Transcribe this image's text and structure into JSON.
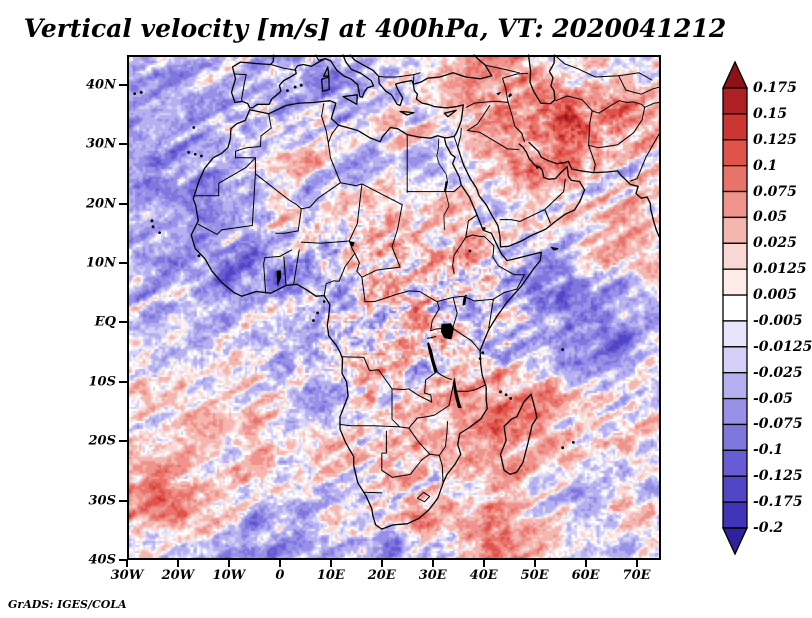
{
  "title": {
    "text": "Vertical velocity [m/s] at 400hPa, VT: 2020041212"
  },
  "credit": {
    "text": "GrADS: IGES/COLA"
  },
  "chart_data": {
    "type": "heatmap",
    "title": "Vertical velocity [m/s] at 400hPa, VT: 2020041212",
    "variable": "Vertical velocity",
    "units": "m/s",
    "pressure_level": "400hPa",
    "valid_time": "2020041212",
    "map_region": "Africa, southern Europe and Middle East",
    "x_axis": {
      "tick_labels": [
        "30W",
        "20W",
        "10W",
        "0",
        "10E",
        "20E",
        "30E",
        "40E",
        "50E",
        "60E",
        "70E"
      ],
      "tick_lons": [
        -30,
        -20,
        -10,
        0,
        10,
        20,
        30,
        40,
        50,
        60,
        70
      ],
      "range_lon": [
        -30,
        74.8
      ]
    },
    "y_axis": {
      "tick_labels": [
        "40N",
        "30N",
        "20N",
        "10N",
        "EQ",
        "10S",
        "20S",
        "30S",
        "40S"
      ],
      "tick_lats": [
        40,
        30,
        20,
        10,
        0,
        -10,
        -20,
        -30,
        -40
      ],
      "range_lat": [
        -40,
        45
      ]
    },
    "colorbar": {
      "labels_top_to_bottom": [
        "0.175",
        "0.15",
        "0.125",
        "0.1",
        "0.075",
        "0.05",
        "0.025",
        "0.0125",
        "0.005",
        "-0.005",
        "-0.0125",
        "-0.025",
        "-0.05",
        "-0.075",
        "-0.1",
        "-0.125",
        "-0.175",
        "-0.2"
      ],
      "levels_ascending": [
        -0.2,
        -0.175,
        -0.125,
        -0.1,
        -0.075,
        -0.05,
        -0.025,
        -0.0125,
        -0.005,
        0.005,
        0.0125,
        0.025,
        0.05,
        0.075,
        0.1,
        0.125,
        0.15,
        0.175
      ],
      "colors_low_to_high": [
        "#31219f",
        "#4234b8",
        "#5246c6",
        "#675cd3",
        "#7f76de",
        "#9991e7",
        "#b6b0f0",
        "#d3cff7",
        "#e7e5fb",
        "#ffffff",
        "#fcebe9",
        "#f9d7d4",
        "#f5b6b0",
        "#ef938c",
        "#e8736b",
        "#e0534b",
        "#cb3632",
        "#ad2023",
        "#8e1115"
      ],
      "arrow_ends": true
    }
  }
}
